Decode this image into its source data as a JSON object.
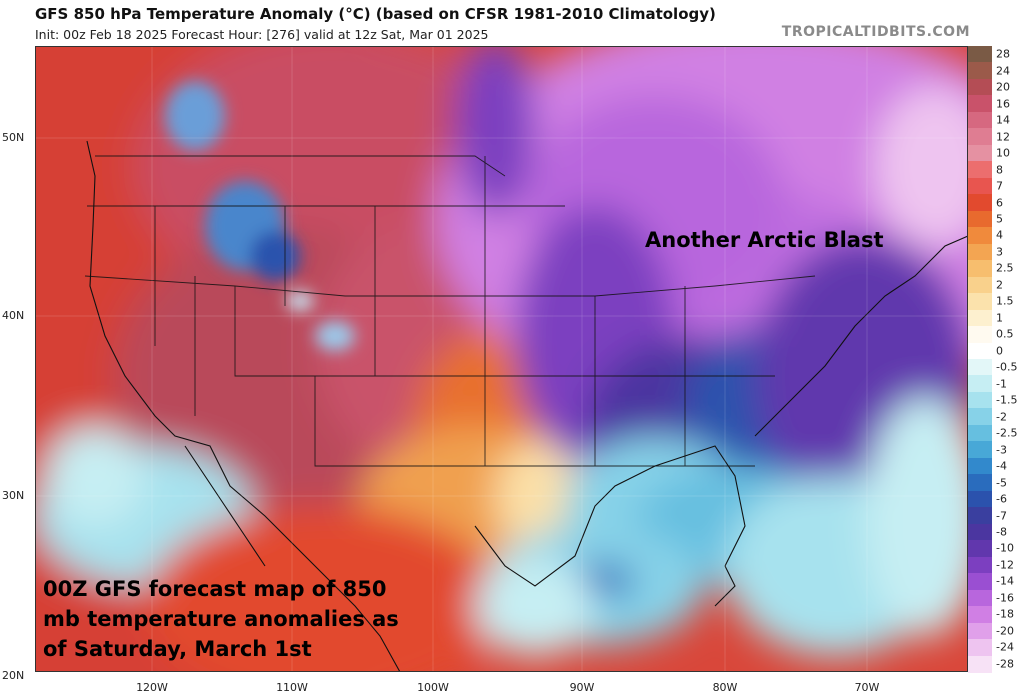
{
  "header": {
    "title": "GFS 850 hPa Temperature Anomaly (°C) (based on CFSR 1981-2010 Climatology)",
    "subtitle": "Init: 00z Feb 18 2025   Forecast Hour: [276]   valid at 12z Sat, Mar 01 2025",
    "brand": "TROPICALTIDBITS.COM"
  },
  "axes": {
    "lat_labels": [
      "50N",
      "40N",
      "30N",
      "20N"
    ],
    "lon_labels": [
      "120W",
      "110W",
      "100W",
      "90W",
      "80W",
      "70W"
    ]
  },
  "annotations": {
    "arctic": "Another Arctic Blast",
    "caption": "00Z GFS forecast map of 850 mb temperature anomalies as of Saturday, March 1st"
  },
  "colorbar": {
    "labels": [
      "28",
      "24",
      "20",
      "16",
      "14",
      "12",
      "10",
      "8",
      "7",
      "6",
      "5",
      "4",
      "3",
      "2.5",
      "2",
      "1.5",
      "1",
      "0.5",
      "0",
      "-0.5",
      "-1",
      "-1.5",
      "-2",
      "-2.5",
      "-3",
      "-4",
      "-5",
      "-6",
      "-7",
      "-8",
      "-10",
      "-12",
      "-14",
      "-16",
      "-18",
      "-20",
      "-24",
      "-28"
    ],
    "colors": [
      "#7a5a45",
      "#9b5a4a",
      "#b44d55",
      "#c9526a",
      "#d66880",
      "#df7d92",
      "#e591a2",
      "#ec6e6e",
      "#e8554f",
      "#e24a2e",
      "#e86a2e",
      "#f08a3c",
      "#f3a552",
      "#f7be6e",
      "#f9d18c",
      "#fbe2ac",
      "#fdf0cf",
      "#fffaf0",
      "#ffffff",
      "#e3f7f8",
      "#c6eef3",
      "#a7e2ee",
      "#87d2e8",
      "#66bfe0",
      "#48a8d7",
      "#3289cc",
      "#2a6cbd",
      "#2b52ad",
      "#3a3f9f",
      "#4b36a0",
      "#6137ad",
      "#7c3fc0",
      "#9a4fd2",
      "#b866dd",
      "#d07fe4",
      "#e0a0ea",
      "#eec4f0",
      "#f7e2f6"
    ]
  },
  "colors": {
    "coast_line": "#111111",
    "ocean_pacific": "#e0513a",
    "arctic_core": "#7c3fc0"
  }
}
